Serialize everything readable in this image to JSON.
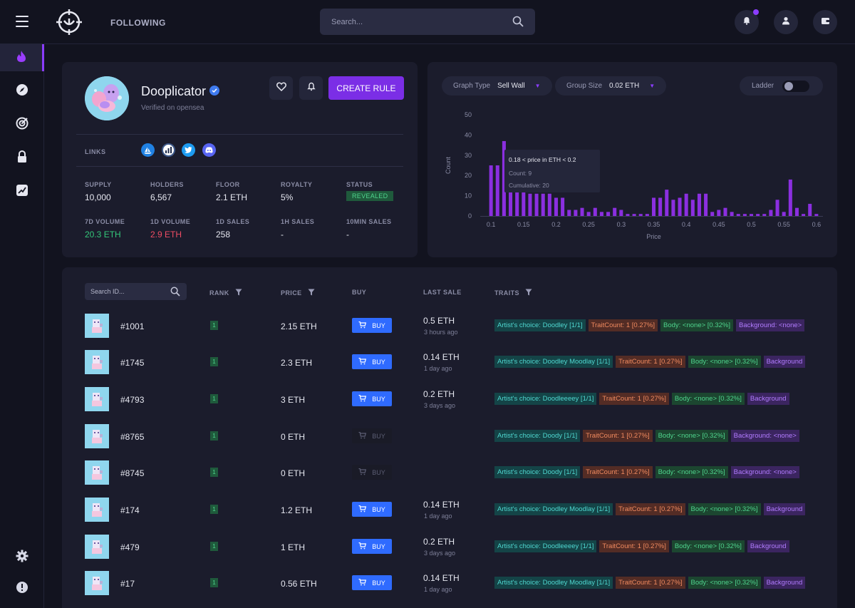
{
  "nav": {
    "following": "FOLLOWING",
    "search_placeholder": "Search..."
  },
  "collection": {
    "name": "Dooplicator",
    "verified_text": "Verified on opensea",
    "create_rule": "CREATE RULE",
    "links_label": "LINKS",
    "stats": [
      {
        "label": "SUPPLY",
        "value": "10,000"
      },
      {
        "label": "HOLDERS",
        "value": "6,567"
      },
      {
        "label": "FLOOR",
        "value": "2.1 ETH"
      },
      {
        "label": "ROYALTY",
        "value": "5%"
      },
      {
        "label": "STATUS",
        "value": "REVEALED"
      },
      {
        "label": "7D VOLUME",
        "value": "20.3 ETH"
      },
      {
        "label": "1D VOLUME",
        "value": "2.9 ETH"
      },
      {
        "label": "1D SALES",
        "value": "258"
      },
      {
        "label": "1H SALES",
        "value": "-"
      },
      {
        "label": "10MIN SALES",
        "value": "-"
      }
    ]
  },
  "graph_controls": {
    "graph_type_label": "Graph Type",
    "graph_type_value": "Sell Wall",
    "group_size_label": "Group Size",
    "group_size_value": "0.02 ETH",
    "ladder_label": "Ladder"
  },
  "chart_data": {
    "type": "bar",
    "xlabel": "Price",
    "ylabel": "Count",
    "ylim": [
      0,
      50
    ],
    "yticks": [
      0,
      10,
      20,
      30,
      40,
      50
    ],
    "xlim": [
      0.09,
      0.61
    ],
    "xticks": [
      0.1,
      0.15,
      0.2,
      0.25,
      0.3,
      0.35,
      0.4,
      0.45,
      0.5,
      0.55,
      0.6
    ],
    "xtick_labels": [
      "0.1",
      "0.15",
      "0.2",
      "0.25",
      "0.3",
      "0.35",
      "0.4",
      "0.45",
      "0.5",
      "0.55",
      "0.6"
    ],
    "bin_width": 0.01,
    "x": [
      0.1,
      0.11,
      0.12,
      0.13,
      0.14,
      0.15,
      0.16,
      0.17,
      0.18,
      0.19,
      0.2,
      0.21,
      0.22,
      0.23,
      0.24,
      0.25,
      0.26,
      0.27,
      0.28,
      0.29,
      0.3,
      0.31,
      0.32,
      0.33,
      0.34,
      0.35,
      0.36,
      0.37,
      0.38,
      0.39,
      0.4,
      0.41,
      0.42,
      0.43,
      0.44,
      0.45,
      0.46,
      0.47,
      0.48,
      0.49,
      0.5,
      0.51,
      0.52,
      0.53,
      0.54,
      0.55,
      0.56,
      0.57,
      0.58,
      0.59,
      0.6
    ],
    "values": [
      25,
      25,
      37,
      21,
      16,
      16,
      11,
      11,
      11,
      11,
      9,
      9,
      3,
      3,
      4,
      2,
      4,
      2,
      2,
      4,
      3,
      1,
      1,
      1,
      1,
      9,
      9,
      13,
      8,
      9,
      11,
      8,
      11,
      11,
      2,
      3,
      4,
      2,
      1,
      1,
      1,
      1,
      1,
      3,
      8,
      2,
      18,
      4,
      1,
      6,
      1
    ],
    "tooltip": {
      "title": "0.18 < price in ETH < 0.2",
      "count": "Count: 9",
      "cumulative": "Cumulative: 20"
    }
  },
  "table": {
    "search_placeholder": "Search ID...",
    "headers": {
      "rank": "RANK",
      "price": "PRICE",
      "buy": "BUY",
      "last_sale": "LAST SALE",
      "traits": "TRAITS"
    },
    "buy_label": "BUY",
    "rows": [
      {
        "id": "#1001",
        "rank": "1",
        "price": "2.15 ETH",
        "buy_enabled": true,
        "last_sale": "0.5 ETH",
        "ago": "3 hours ago",
        "traits": [
          "Artist's choice: Doodley [1/1]",
          "TraitCount: 1 [0.27%]",
          "Body: <none> [0.32%]",
          "Background: <none>"
        ]
      },
      {
        "id": "#1745",
        "rank": "1",
        "price": "2.3 ETH",
        "buy_enabled": true,
        "last_sale": "0.14 ETH",
        "ago": "1 day ago",
        "traits": [
          "Artist's choice: Doodley Moodlay [1/1]",
          "TraitCount: 1 [0.27%]",
          "Body: <none> [0.32%]",
          "Background"
        ]
      },
      {
        "id": "#4793",
        "rank": "1",
        "price": "3 ETH",
        "buy_enabled": true,
        "last_sale": "0.2 ETH",
        "ago": "3 days ago",
        "traits": [
          "Artist's choice: Doodleeeey [1/1]",
          "TraitCount: 1 [0.27%]",
          "Body: <none> [0.32%]",
          "Background"
        ]
      },
      {
        "id": "#8765",
        "rank": "1",
        "price": "0 ETH",
        "buy_enabled": false,
        "last_sale": "",
        "ago": "",
        "traits": [
          "Artist's choice: Doody [1/1]",
          "TraitCount: 1 [0.27%]",
          "Body: <none> [0.32%]",
          "Background: <none>"
        ]
      },
      {
        "id": "#8745",
        "rank": "1",
        "price": "0 ETH",
        "buy_enabled": false,
        "last_sale": "",
        "ago": "",
        "traits": [
          "Artist's choice: Doody [1/1]",
          "TraitCount: 1 [0.27%]",
          "Body: <none> [0.32%]",
          "Background: <none>"
        ]
      },
      {
        "id": "#174",
        "rank": "1",
        "price": "1.2 ETH",
        "buy_enabled": true,
        "last_sale": "0.14 ETH",
        "ago": "1 day ago",
        "traits": [
          "Artist's choice: Doodley Moodlay [1/1]",
          "TraitCount: 1 [0.27%]",
          "Body: <none> [0.32%]",
          "Background"
        ]
      },
      {
        "id": "#479",
        "rank": "1",
        "price": "1 ETH",
        "buy_enabled": true,
        "last_sale": "0.2 ETH",
        "ago": "3 days ago",
        "traits": [
          "Artist's choice: Doodleeeey [1/1]",
          "TraitCount: 1 [0.27%]",
          "Body: <none> [0.32%]",
          "Background"
        ]
      },
      {
        "id": "#17",
        "rank": "1",
        "price": "0.56 ETH",
        "buy_enabled": true,
        "last_sale": "0.14 ETH",
        "ago": "1 day ago",
        "traits": [
          "Artist's choice: Doodley Moodlay [1/1]",
          "TraitCount: 1 [0.27%]",
          "Body: <none> [0.32%]",
          "Background"
        ]
      }
    ]
  },
  "colors": {
    "accent": "#7b2ee6",
    "buy": "#2f6bff",
    "positive": "#34c77a",
    "negative": "#ef4d64",
    "bar": "#8b2fe0"
  },
  "icons": {
    "menu": "hamburger-icon",
    "logo": "crosshair-logo-icon",
    "search": "search-icon",
    "notifications": "bell-icon",
    "user": "user-icon",
    "wallet": "wallet-icon",
    "sidebar": [
      "flame-icon",
      "compass-icon",
      "target-icon",
      "lock-icon",
      "trending-icon",
      "gear-icon",
      "info-icon"
    ]
  }
}
